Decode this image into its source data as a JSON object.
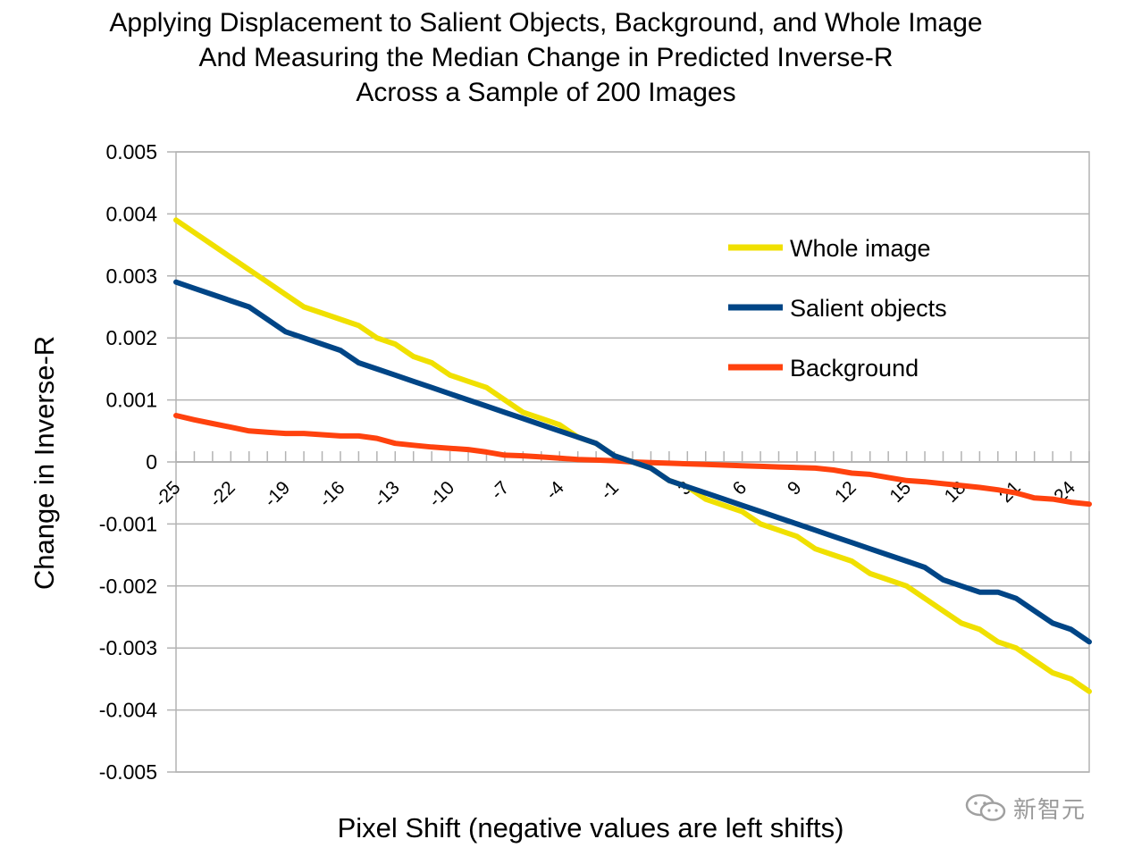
{
  "chart_data": {
    "type": "line",
    "title": [
      "Applying Displacement to Salient Objects, Background, and Whole Image",
      "And Measuring the Median Change in Predicted Inverse-R",
      "Across a Sample of 200 Images"
    ],
    "xlabel": "Pixel Shift (negative values are left shifts)",
    "ylabel": "Change in Inverse-R",
    "xlim": [
      -25,
      25
    ],
    "ylim": [
      -0.005,
      0.005
    ],
    "x_tick_labels": [
      "-25",
      "-22",
      "-19",
      "-16",
      "-13",
      "-10",
      "-7",
      "-4",
      "-1",
      "3",
      "6",
      "9",
      "12",
      "15",
      "18",
      "21",
      "24"
    ],
    "y_tick_labels": [
      "0.005",
      "0.004",
      "0.003",
      "0.002",
      "0.001",
      "0",
      "-0.001",
      "-0.002",
      "-0.003",
      "-0.004",
      "-0.005"
    ],
    "grid": true,
    "legend_position": "top-right",
    "x": [
      -25,
      -24,
      -23,
      -22,
      -21,
      -20,
      -19,
      -18,
      -17,
      -16,
      -15,
      -14,
      -13,
      -12,
      -11,
      -10,
      -9,
      -8,
      -7,
      -6,
      -5,
      -4,
      -3,
      -2,
      -1,
      0,
      1,
      2,
      3,
      4,
      5,
      6,
      7,
      8,
      9,
      10,
      11,
      12,
      13,
      14,
      15,
      16,
      17,
      18,
      19,
      20,
      21,
      22,
      23,
      24,
      25
    ],
    "series": [
      {
        "name": "Whole image",
        "color": "#f0e000",
        "values": [
          0.0039,
          0.0037,
          0.0035,
          0.0033,
          0.0031,
          0.0029,
          0.0027,
          0.0025,
          0.0024,
          0.0023,
          0.0022,
          0.002,
          0.0019,
          0.0017,
          0.0016,
          0.0014,
          0.0013,
          0.0012,
          0.001,
          0.0008,
          0.0007,
          0.0006,
          0.0004,
          0.0003,
          0.0001,
          0.0,
          -0.0001,
          -0.0003,
          -0.0004,
          -0.0006,
          -0.0007,
          -0.0008,
          -0.001,
          -0.0011,
          -0.0012,
          -0.0014,
          -0.0015,
          -0.0016,
          -0.0018,
          -0.0019,
          -0.002,
          -0.0022,
          -0.0024,
          -0.0026,
          -0.0027,
          -0.0029,
          -0.003,
          -0.0032,
          -0.0034,
          -0.0035,
          -0.0037
        ]
      },
      {
        "name": "Salient objects",
        "color": "#004586",
        "values": [
          0.0029,
          0.0028,
          0.0027,
          0.0026,
          0.0025,
          0.0023,
          0.0021,
          0.002,
          0.0019,
          0.0018,
          0.0016,
          0.0015,
          0.0014,
          0.0013,
          0.0012,
          0.0011,
          0.001,
          0.0009,
          0.0008,
          0.0007,
          0.0006,
          0.0005,
          0.0004,
          0.0003,
          0.0001,
          0.0,
          -0.0001,
          -0.0003,
          -0.0004,
          -0.0005,
          -0.0006,
          -0.0007,
          -0.0008,
          -0.0009,
          -0.001,
          -0.0011,
          -0.0012,
          -0.0013,
          -0.0014,
          -0.0015,
          -0.0016,
          -0.0017,
          -0.0019,
          -0.002,
          -0.0021,
          -0.0021,
          -0.0022,
          -0.0024,
          -0.0026,
          -0.0027,
          -0.0029
        ]
      },
      {
        "name": "Background",
        "color": "#ff420e",
        "values": [
          0.00075,
          0.00068,
          0.00062,
          0.00056,
          0.0005,
          0.00048,
          0.00046,
          0.00046,
          0.00044,
          0.00042,
          0.00042,
          0.00038,
          0.0003,
          0.00027,
          0.00024,
          0.00022,
          0.0002,
          0.00016,
          0.00011,
          0.0001,
          8e-05,
          6e-05,
          4e-05,
          3e-05,
          2e-05,
          0.0,
          -1e-05,
          -2e-05,
          -3e-05,
          -4e-05,
          -5e-05,
          -6e-05,
          -7e-05,
          -8e-05,
          -9e-05,
          -0.0001,
          -0.00013,
          -0.00018,
          -0.0002,
          -0.00025,
          -0.0003,
          -0.00032,
          -0.00035,
          -0.00038,
          -0.00041,
          -0.00045,
          -0.0005,
          -0.00058,
          -0.0006,
          -0.00065,
          -0.00068
        ]
      }
    ]
  },
  "watermark": {
    "logo": "wechat-icon",
    "text": "新智元"
  }
}
